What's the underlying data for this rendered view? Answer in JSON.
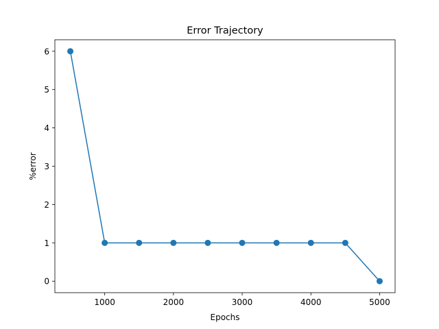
{
  "chart_data": {
    "type": "line",
    "title": "Error Trajectory",
    "xlabel": "Epochs",
    "ylabel": "%error",
    "x": [
      500,
      1000,
      1500,
      2000,
      2500,
      3000,
      3500,
      4000,
      4500,
      5000
    ],
    "series": [
      {
        "values": [
          6,
          1,
          1,
          1,
          1,
          1,
          1,
          1,
          1,
          0
        ],
        "color": "#1f77b4",
        "marker": "circle"
      }
    ],
    "xlim": [
      275,
      5225
    ],
    "ylim": [
      -0.3,
      6.3
    ],
    "xticks": [
      1000,
      2000,
      3000,
      4000,
      5000
    ],
    "yticks": [
      0,
      1,
      2,
      3,
      4,
      5,
      6
    ],
    "grid": false,
    "legend": false
  }
}
